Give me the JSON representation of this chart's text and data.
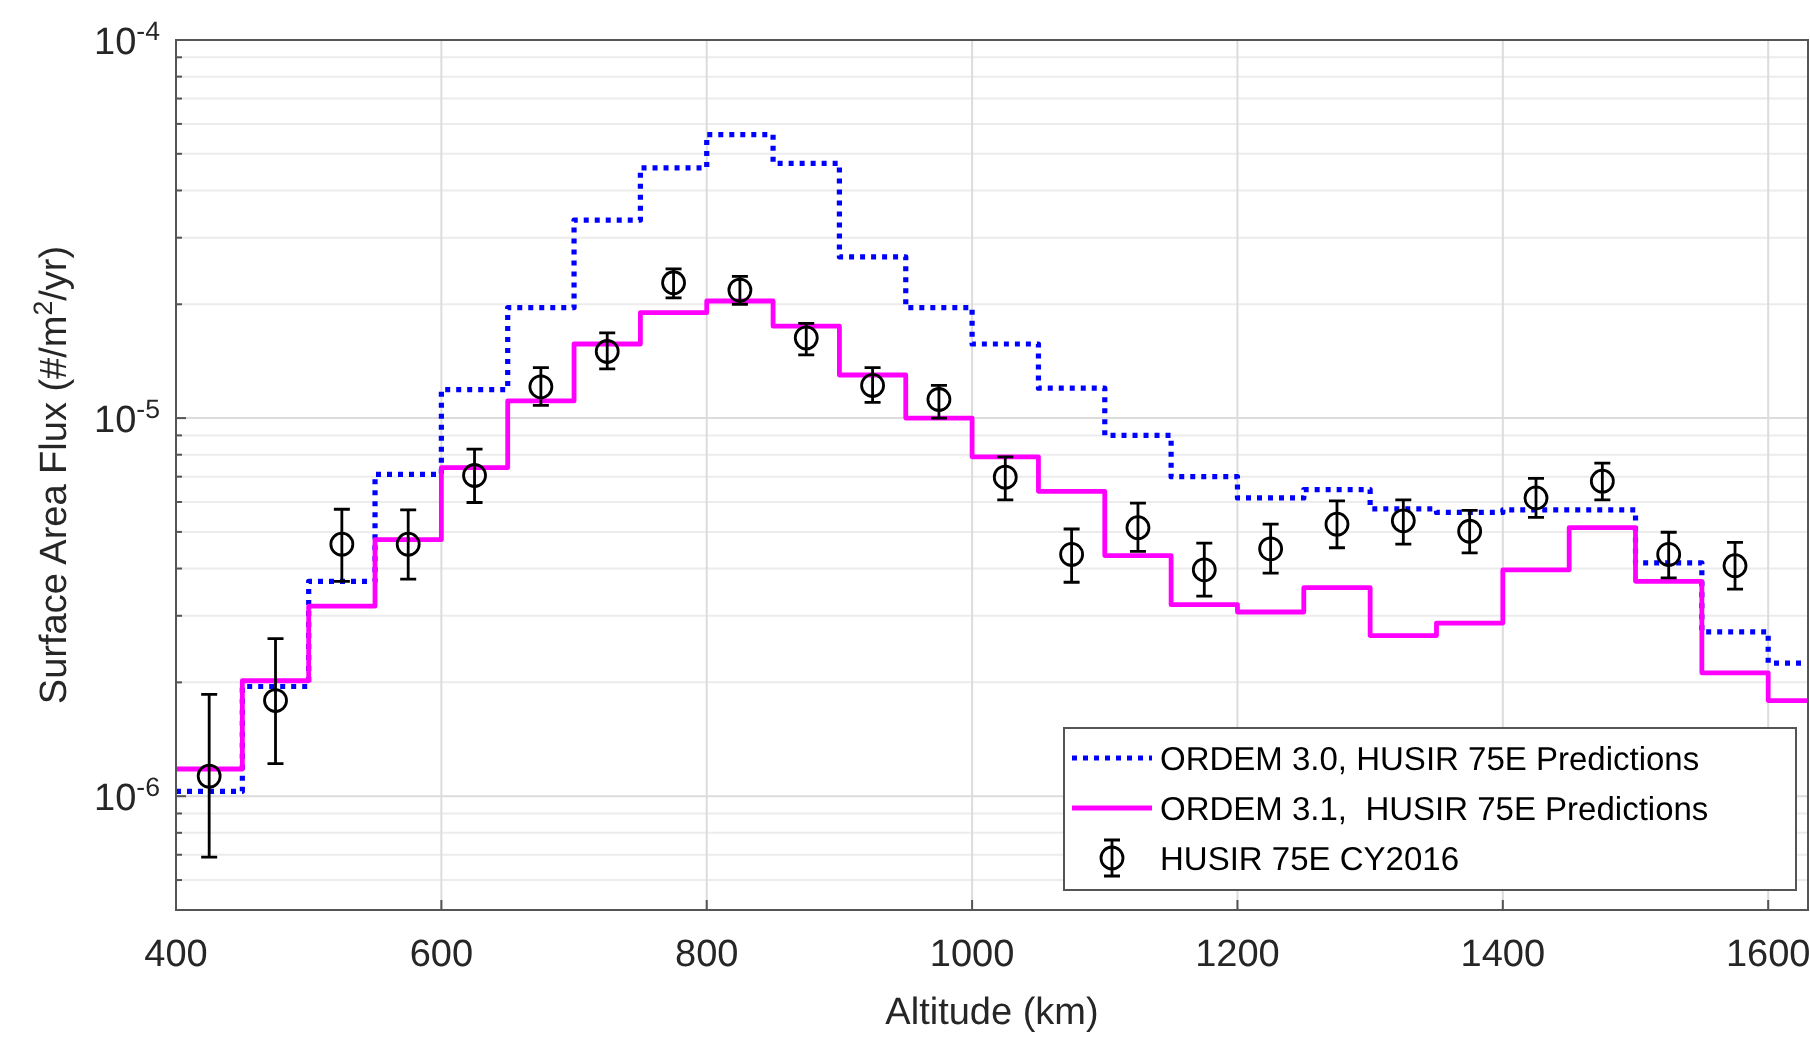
{
  "chart_data": {
    "type": "step",
    "xlabel": "Altitude (km)",
    "ylabel": "Surface Area Flux (#/m$^{2}$/yr)",
    "log": "y",
    "grid": true,
    "legend": "bottom right",
    "xlim": [
      400,
      1630
    ],
    "ylim": [
      5e-07,
      0.0001
    ],
    "xticks": [
      400,
      600,
      800,
      1000,
      1200,
      1400,
      1600
    ],
    "yticks": [
      {
        "value": 6e-07,
        "label": null
      },
      {
        "value": 7e-07,
        "label": null
      },
      {
        "value": 8e-07,
        "label": null
      },
      {
        "value": 9e-07,
        "label": null
      },
      {
        "value": 1e-06,
        "label": "10$^{-6}$"
      },
      {
        "value": 2e-06,
        "label": null
      },
      {
        "value": 3e-06,
        "label": null
      },
      {
        "value": 4e-06,
        "label": null
      },
      {
        "value": 5e-06,
        "label": null
      },
      {
        "value": 6e-06,
        "label": null
      },
      {
        "value": 7e-06,
        "label": null
      },
      {
        "value": 8e-06,
        "label": null
      },
      {
        "value": 9e-06,
        "label": null
      },
      {
        "value": 1e-05,
        "label": "10$^{-5}$"
      },
      {
        "value": 2e-05,
        "label": null
      },
      {
        "value": 3e-05,
        "label": null
      },
      {
        "value": 4e-05,
        "label": null
      },
      {
        "value": 5e-05,
        "label": null
      },
      {
        "value": 6e-05,
        "label": null
      },
      {
        "value": 7e-05,
        "label": null
      },
      {
        "value": 8e-05,
        "label": null
      },
      {
        "value": 9e-05,
        "label": null
      },
      {
        "value": 0.0001,
        "label": "10$^{-4}$"
      }
    ],
    "series": [
      {
        "name": "ORDEM 3.0, HUSIR 75E Predictions",
        "color": "#0000ff",
        "line_style": "dotted",
        "x": [
          400,
          450,
          500,
          550,
          600,
          650,
          700,
          750,
          800,
          850,
          900,
          950,
          1000,
          1050,
          1100,
          1150,
          1200,
          1250,
          1300,
          1350,
          1400,
          1450,
          1500,
          1550,
          1600,
          1630
        ],
        "values": [
          1.03e-06,
          1.95e-06,
          3.7e-06,
          7.1e-06,
          1.19e-05,
          1.96e-05,
          3.34e-05,
          4.59e-05,
          5.62e-05,
          4.72e-05,
          2.67e-05,
          1.96e-05,
          1.57e-05,
          1.2e-05,
          9e-06,
          7e-06,
          6.15e-06,
          6.47e-06,
          5.75e-06,
          5.63e-06,
          5.72e-06,
          5.72e-06,
          4.14e-06,
          2.72e-06,
          2.25e-06,
          2.25e-06
        ]
      },
      {
        "name": "ORDEM 3.1,  HUSIR 75E Predictions",
        "color": "#ff00ff",
        "line_style": "solid",
        "x": [
          400,
          450,
          500,
          550,
          600,
          650,
          700,
          750,
          800,
          850,
          900,
          950,
          1000,
          1050,
          1100,
          1150,
          1200,
          1250,
          1300,
          1350,
          1400,
          1450,
          1500,
          1550,
          1600,
          1630
        ],
        "values": [
          1.18e-06,
          2.02e-06,
          3.18e-06,
          4.77e-06,
          7.4e-06,
          1.11e-05,
          1.57e-05,
          1.9e-05,
          2.04e-05,
          1.75e-05,
          1.3e-05,
          1e-05,
          7.9e-06,
          6.4e-06,
          4.33e-06,
          3.21e-06,
          3.07e-06,
          3.56e-06,
          2.66e-06,
          2.87e-06,
          3.97e-06,
          5.13e-06,
          3.7e-06,
          2.12e-06,
          1.79e-06,
          1.79e-06
        ]
      },
      {
        "name": "HUSIR 75E CY2016",
        "type": "scatter",
        "color": "#000000",
        "marker": "circle",
        "x": [
          425,
          475,
          525,
          575,
          625,
          675,
          725,
          775,
          825,
          875,
          925,
          975,
          1025,
          1075,
          1125,
          1175,
          1225,
          1275,
          1325,
          1375,
          1425,
          1475,
          1525,
          1575
        ],
        "values": [
          1.13e-06,
          1.79e-06,
          4.64e-06,
          4.64e-06,
          7.05e-06,
          1.21e-05,
          1.5e-05,
          2.28e-05,
          2.18e-05,
          1.63e-05,
          1.22e-05,
          1.12e-05,
          6.98e-06,
          4.36e-06,
          5.13e-06,
          3.97e-06,
          4.51e-06,
          5.24e-06,
          5.35e-06,
          5.02e-06,
          6.15e-06,
          6.81e-06,
          4.36e-06,
          4.07e-06
        ],
        "errors": [
          [
            6.9e-07,
            1.86e-06
          ],
          [
            1.22e-06,
            2.61e-06
          ],
          [
            3.7e-06,
            5.74e-06
          ],
          [
            3.75e-06,
            5.72e-06
          ],
          [
            5.98e-06,
            8.28e-06
          ],
          [
            1.08e-05,
            1.36e-05
          ],
          [
            1.35e-05,
            1.68e-05
          ],
          [
            2.08e-05,
            2.48e-05
          ],
          [
            2e-05,
            2.37e-05
          ],
          [
            1.47e-05,
            1.78e-05
          ],
          [
            1.1e-05,
            1.36e-05
          ],
          [
            1e-05,
            1.22e-05
          ],
          [
            6.08e-06,
            7.9e-06
          ],
          [
            3.68e-06,
            5.09e-06
          ],
          [
            4.44e-06,
            5.96e-06
          ],
          [
            3.38e-06,
            4.67e-06
          ],
          [
            3.89e-06,
            5.24e-06
          ],
          [
            4.54e-06,
            6.04e-06
          ],
          [
            4.64e-06,
            6.08e-06
          ],
          [
            4.4e-06,
            5.7e-06
          ],
          [
            5.46e-06,
            6.93e-06
          ],
          [
            6.08e-06,
            7.6e-06
          ],
          [
            3.78e-06,
            4.99e-06
          ],
          [
            3.53e-06,
            4.69e-06
          ]
        ]
      }
    ]
  }
}
